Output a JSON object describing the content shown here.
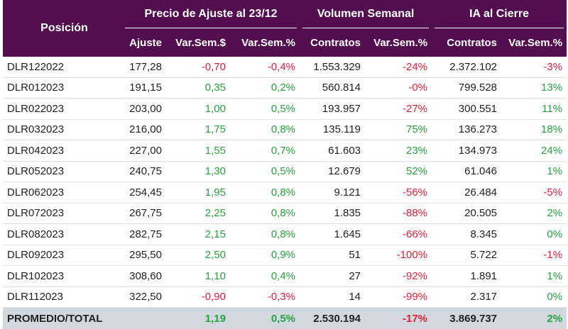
{
  "header": {
    "position_label": "Posición",
    "group_price": "Precio de Ajuste al 23/12",
    "group_volume": "Volumen Semanal",
    "group_oi": "IA al Cierre",
    "col_ajuste": "Ajuste",
    "col_var_pesos": "Var.Sem.$",
    "col_var_pct_price": "Var.Sem.%",
    "col_contratos_vol": "Contratos",
    "col_var_pct_vol": "Var.Sem.%",
    "col_contratos_oi": "Contratos",
    "col_var_pct_oi": "Var.Sem.%"
  },
  "rows": [
    {
      "pos": "DLR122022",
      "ajuste": "177,28",
      "var_pesos": "-0,70",
      "var_pct": "-0,4%",
      "vol": "1.553.329",
      "vol_pct": "-24%",
      "oi": "2.372.102",
      "oi_pct": "-3%"
    },
    {
      "pos": "DLR012023",
      "ajuste": "191,15",
      "var_pesos": "0,35",
      "var_pct": "0,2%",
      "vol": "560.814",
      "vol_pct": "-0%",
      "oi": "799.528",
      "oi_pct": "13%"
    },
    {
      "pos": "DLR022023",
      "ajuste": "203,00",
      "var_pesos": "1,00",
      "var_pct": "0,5%",
      "vol": "193.957",
      "vol_pct": "-27%",
      "oi": "300.551",
      "oi_pct": "11%"
    },
    {
      "pos": "DLR032023",
      "ajuste": "216,00",
      "var_pesos": "1,75",
      "var_pct": "0,8%",
      "vol": "135.119",
      "vol_pct": "75%",
      "oi": "136.273",
      "oi_pct": "18%"
    },
    {
      "pos": "DLR042023",
      "ajuste": "227,00",
      "var_pesos": "1,55",
      "var_pct": "0,7%",
      "vol": "61.603",
      "vol_pct": "23%",
      "oi": "134.973",
      "oi_pct": "24%"
    },
    {
      "pos": "DLR052023",
      "ajuste": "240,75",
      "var_pesos": "1,30",
      "var_pct": "0,5%",
      "vol": "12.679",
      "vol_pct": "52%",
      "oi": "61.046",
      "oi_pct": "1%"
    },
    {
      "pos": "DLR062023",
      "ajuste": "254,45",
      "var_pesos": "1,95",
      "var_pct": "0,8%",
      "vol": "9.121",
      "vol_pct": "-56%",
      "oi": "26.484",
      "oi_pct": "-5%"
    },
    {
      "pos": "DLR072023",
      "ajuste": "267,75",
      "var_pesos": "2,25",
      "var_pct": "0,8%",
      "vol": "1.835",
      "vol_pct": "-88%",
      "oi": "20.505",
      "oi_pct": "2%"
    },
    {
      "pos": "DLR082023",
      "ajuste": "282,75",
      "var_pesos": "2,15",
      "var_pct": "0,8%",
      "vol": "1.645",
      "vol_pct": "-66%",
      "oi": "8.345",
      "oi_pct": "0%"
    },
    {
      "pos": "DLR092023",
      "ajuste": "295,50",
      "var_pesos": "2,50",
      "var_pct": "0,9%",
      "vol": "51",
      "vol_pct": "-100%",
      "oi": "5.722",
      "oi_pct": "-1%"
    },
    {
      "pos": "DLR102023",
      "ajuste": "308,60",
      "var_pesos": "1,10",
      "var_pct": "0,4%",
      "vol": "27",
      "vol_pct": "-92%",
      "oi": "1.891",
      "oi_pct": "1%"
    },
    {
      "pos": "DLR112023",
      "ajuste": "322,50",
      "var_pesos": "-0,90",
      "var_pct": "-0,3%",
      "vol": "14",
      "vol_pct": "-99%",
      "oi": "2.317",
      "oi_pct": "0%"
    }
  ],
  "total": {
    "label": "PROMEDIO/TOTAL",
    "ajuste": "",
    "var_pesos": "1,19",
    "var_pct": "0,5%",
    "vol": "2.530.194",
    "vol_pct": "-17%",
    "oi": "3.869.737",
    "oi_pct": "2%"
  },
  "colors": {
    "header_bg": "#520e4f",
    "negative": "#e0203a",
    "positive": "#27a140",
    "total_bg": "#d2d9de"
  }
}
